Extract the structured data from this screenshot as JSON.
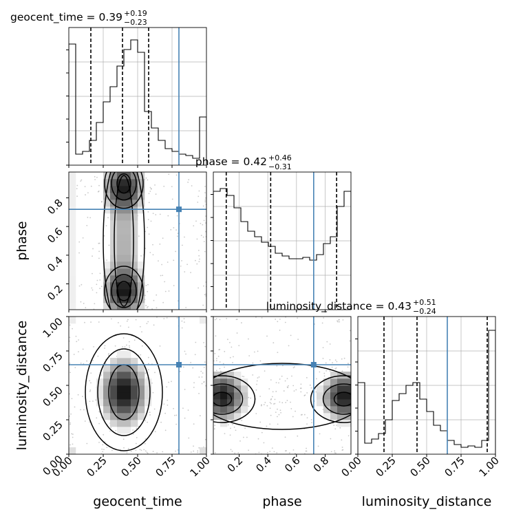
{
  "chart_data": {
    "type": "corner",
    "parameters": [
      "geocent_time",
      "phase",
      "luminosity_distance"
    ],
    "titles": [
      {
        "text": "geocent_time = 0.39",
        "sup": "+0.19",
        "sub": "−0.23"
      },
      {
        "text": "phase = 0.42",
        "sup": "+0.46",
        "sub": "−0.31"
      },
      {
        "text": "luminosity_distance = 0.43",
        "sup": "+0.51",
        "sub": "−0.24"
      }
    ],
    "xlabels": [
      "geocent_time",
      "phase",
      "luminosity_distance"
    ],
    "ylabels": [
      "",
      "phase",
      "luminosity_distance"
    ],
    "ranges": [
      [
        0.0,
        1.0
      ],
      [
        0.02,
        0.98
      ],
      [
        0.0,
        1.0
      ]
    ],
    "ticks": [
      [
        {
          "v": 0.0,
          "l": "0.00"
        },
        {
          "v": 0.25,
          "l": "0.25"
        },
        {
          "v": 0.5,
          "l": "0.50"
        },
        {
          "v": 0.75,
          "l": "0.75"
        },
        {
          "v": 1.0,
          "l": "1.00"
        }
      ],
      [
        {
          "v": 0.2,
          "l": "0.2"
        },
        {
          "v": 0.4,
          "l": "0.4"
        },
        {
          "v": 0.6,
          "l": "0.6"
        },
        {
          "v": 0.8,
          "l": "0.8"
        }
      ],
      [
        {
          "v": 0.0,
          "l": "0.00"
        },
        {
          "v": 0.25,
          "l": "0.25"
        },
        {
          "v": 0.5,
          "l": "0.50"
        },
        {
          "v": 0.75,
          "l": "0.75"
        },
        {
          "v": 1.0,
          "l": "1.00"
        }
      ]
    ],
    "truths": [
      0.8,
      0.72,
      0.65
    ],
    "quantiles": [
      [
        0.16,
        0.39,
        0.58
      ],
      [
        0.11,
        0.42,
        0.88
      ],
      [
        0.19,
        0.43,
        0.94
      ]
    ],
    "histograms": [
      [
        0.88,
        0.08,
        0.1,
        0.18,
        0.31,
        0.46,
        0.57,
        0.72,
        0.84,
        0.91,
        0.82,
        0.39,
        0.27,
        0.18,
        0.12,
        0.1,
        0.08,
        0.07,
        0.05,
        0.35
      ],
      [
        0.86,
        0.88,
        0.83,
        0.74,
        0.64,
        0.57,
        0.53,
        0.49,
        0.46,
        0.41,
        0.39,
        0.37,
        0.37,
        0.38,
        0.36,
        0.4,
        0.48,
        0.53,
        0.75,
        0.86
      ],
      [
        0.52,
        0.08,
        0.11,
        0.15,
        0.25,
        0.39,
        0.44,
        0.5,
        0.52,
        0.4,
        0.31,
        0.21,
        0.17,
        0.1,
        0.07,
        0.05,
        0.06,
        0.05,
        0.1,
        0.9
      ]
    ],
    "colors": {
      "truth": "#4682b4",
      "grid": "#b0b0b0",
      "line": "#000000"
    },
    "grid": true
  }
}
